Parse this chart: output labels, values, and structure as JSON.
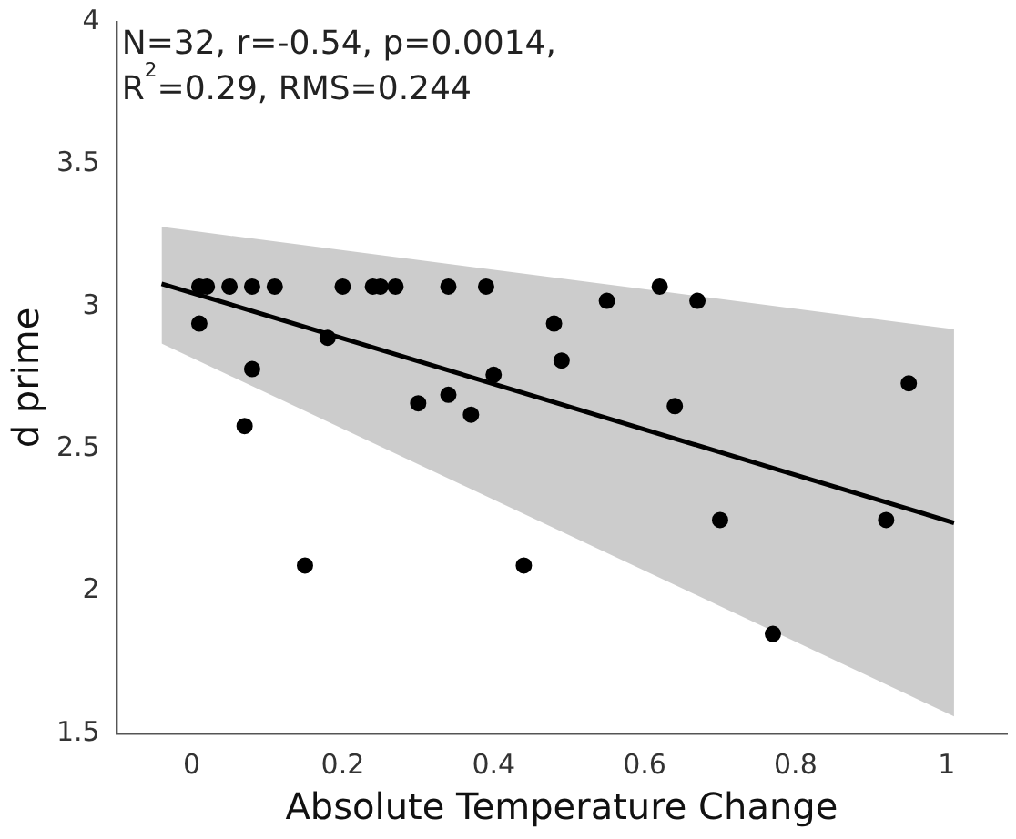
{
  "chart_data": {
    "type": "scatter",
    "xlabel": "Absolute Temperature Change",
    "ylabel": "d prime",
    "annotations": [
      "N=32, r=-0.54, p=0.0014,",
      "R$^{2}$=0.29, RMS=0.244"
    ],
    "xlim": [
      -0.1,
      1.08
    ],
    "ylim": [
      1.5,
      4
    ],
    "xticks": [
      0,
      0.2,
      0.4,
      0.6,
      0.8,
      1
    ],
    "yticks": [
      1.5,
      2,
      2.5,
      3,
      3.5,
      4
    ],
    "grid": false,
    "legend": false,
    "marker": "circle",
    "series": [
      {
        "color": "#000000",
        "x": [
          0.01,
          0.02,
          0.05,
          0.08,
          0.11,
          0.2,
          0.24,
          0.25,
          0.27,
          0.34,
          0.39,
          0.62,
          0.01,
          0.48,
          0.18,
          0.08,
          0.49,
          0.4,
          0.3,
          0.34,
          0.37,
          0.07,
          0.15,
          0.44,
          0.55,
          0.67,
          0.95,
          0.64,
          0.7,
          0.92,
          0.77
        ],
        "values": [
          3.07,
          3.07,
          3.07,
          3.07,
          3.07,
          3.07,
          3.07,
          3.07,
          3.07,
          3.07,
          3.07,
          3.07,
          2.94,
          2.94,
          2.89,
          2.78,
          2.81,
          2.76,
          2.66,
          2.69,
          2.62,
          2.58,
          2.09,
          2.09,
          3.02,
          3.02,
          2.73,
          2.65,
          2.25,
          2.25,
          1.85
        ]
      },
      {
        "type": "line",
        "color": "#000000",
        "line_style": "solid",
        "marker": "none",
        "x": [
          -0.04,
          1.01
        ],
        "values": [
          3.08,
          2.24
        ],
        "lower": [
          2.87,
          1.56
        ],
        "upper": [
          3.28,
          2.92
        ]
      }
    ]
  }
}
